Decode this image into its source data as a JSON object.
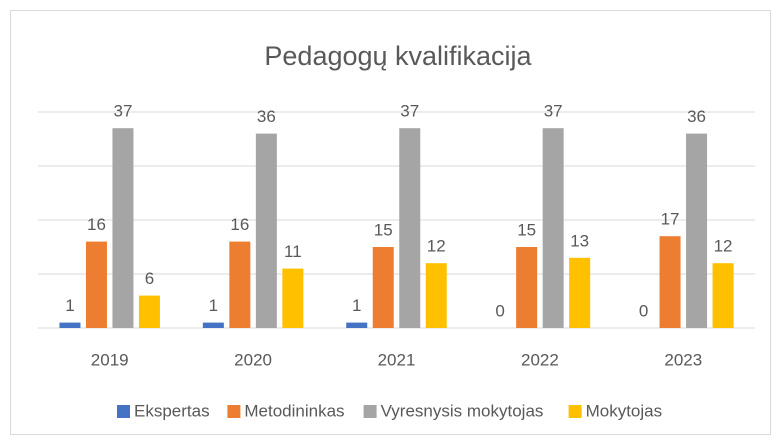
{
  "chart_data": {
    "type": "bar",
    "title": "Pedagogų kvalifikacija",
    "categories": [
      "2019",
      "2020",
      "2021",
      "2022",
      "2023"
    ],
    "series": [
      {
        "name": "Ekspertas",
        "color": "#4472c4",
        "values": [
          1,
          1,
          1,
          0,
          0
        ]
      },
      {
        "name": "Metodininkas",
        "color": "#ed7d31",
        "values": [
          16,
          16,
          15,
          15,
          17
        ]
      },
      {
        "name": "Vyresnysis mokytojas",
        "color": "#a5a5a5",
        "values": [
          37,
          36,
          37,
          37,
          36
        ]
      },
      {
        "name": "Mokytojas",
        "color": "#ffc000",
        "values": [
          6,
          11,
          12,
          13,
          12
        ]
      }
    ],
    "ylim": [
      0,
      40
    ],
    "yticks": [
      0,
      10,
      20,
      30,
      40
    ],
    "grid": true,
    "legend": "bottom"
  }
}
